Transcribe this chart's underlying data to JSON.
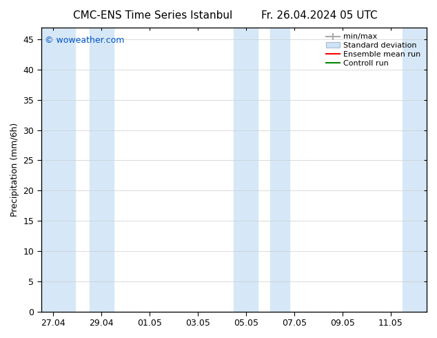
{
  "title_left": "CMC-ENS Time Series Istanbul",
  "title_right": "Fr. 26.04.2024 05 UTC",
  "ylabel": "Precipitation (mm/6h)",
  "watermark": "© woweather.com",
  "watermark_color": "#0055cc",
  "ylim": [
    0,
    47
  ],
  "yticks": [
    0,
    5,
    10,
    15,
    20,
    25,
    30,
    35,
    40,
    45
  ],
  "xtick_labels": [
    "27.04",
    "29.04",
    "01.05",
    "03.05",
    "05.05",
    "07.05",
    "09.05",
    "11.05"
  ],
  "xtick_positions": [
    0,
    2,
    4,
    6,
    8,
    10,
    12,
    14
  ],
  "xlim": [
    -0.5,
    15.5
  ],
  "shade_regions": [
    {
      "xmin": -0.5,
      "xmax": 0.9
    },
    {
      "xmin": 1.5,
      "xmax": 2.5
    },
    {
      "xmin": 7.5,
      "xmax": 8.5
    },
    {
      "xmin": 9.0,
      "xmax": 9.8
    },
    {
      "xmin": 14.5,
      "xmax": 15.5
    }
  ],
  "shade_color": "#d6e8f7",
  "legend_labels": [
    "min/max",
    "Standard deviation",
    "Ensemble mean run",
    "Controll run"
  ],
  "bg_color": "#ffffff",
  "title_fontsize": 11,
  "ylabel_fontsize": 9,
  "tick_fontsize": 9,
  "legend_fontsize": 8
}
